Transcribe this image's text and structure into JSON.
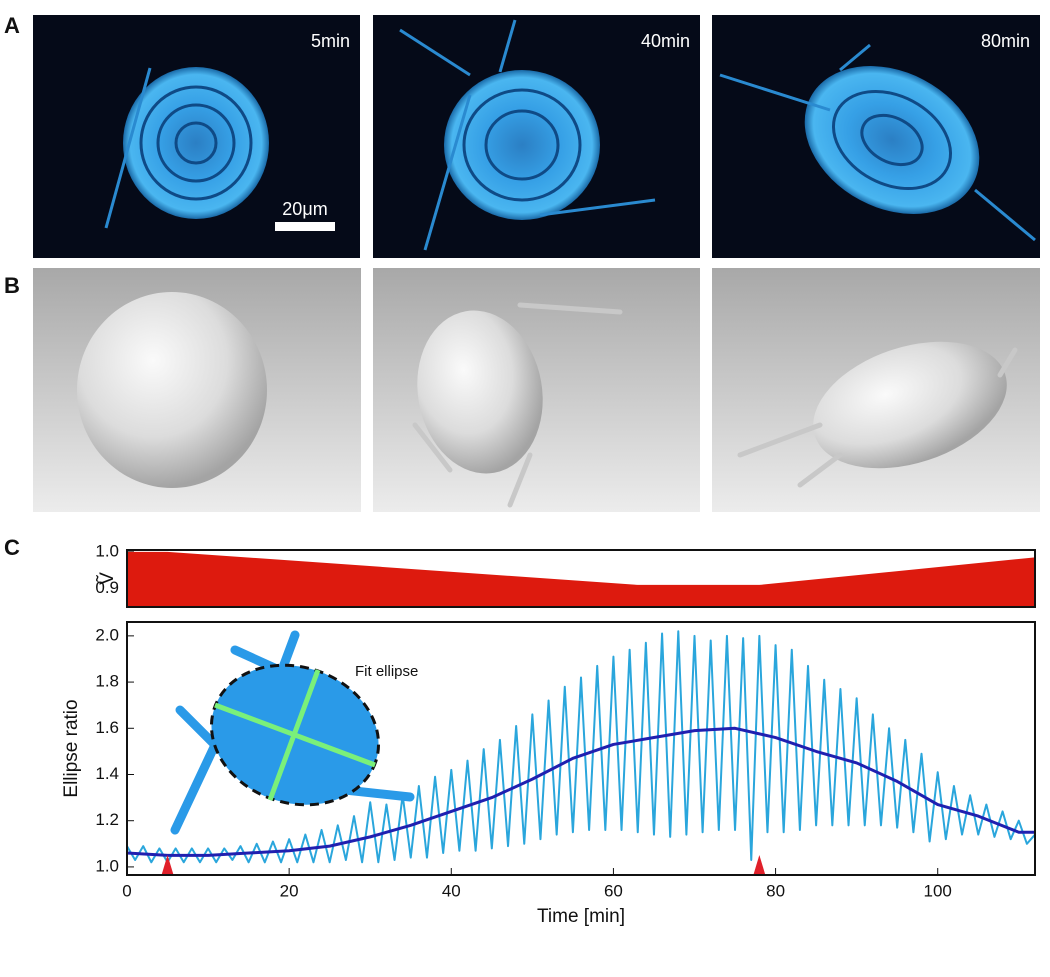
{
  "panels": {
    "A": {
      "label": "A",
      "times": [
        "5min",
        "40min",
        "80min"
      ],
      "scale_bar": "20μm"
    },
    "B": {
      "label": "B"
    },
    "C": {
      "label": "C"
    }
  },
  "chart_data": [
    {
      "type": "area",
      "ylabel": "Ṽ",
      "color": "#dd1a0e",
      "x": [
        0,
        5,
        63,
        78,
        112
      ],
      "values": [
        1.0,
        1.0,
        0.91,
        0.91,
        0.985
      ],
      "xlim": [
        0,
        112
      ],
      "ylim": [
        0.85,
        1.005
      ],
      "yticks": [
        0.9,
        {
          "value": 1,
          "label": "1.0"
        }
      ]
    },
    {
      "type": "line",
      "xlabel": "Time [min]",
      "ylabel": "Ellipse ratio",
      "annotation": "Fit ellipse",
      "xlim": [
        0,
        112
      ],
      "ylim": [
        0.965,
        2.06
      ],
      "xticks": [
        0,
        20,
        40,
        60,
        80,
        100
      ],
      "yticks": [
        {
          "value": 1,
          "label": "1.0"
        },
        1.2,
        1.4,
        1.6,
        1.8,
        {
          "value": 2,
          "label": "2.0"
        }
      ],
      "markers": {
        "x": [
          5,
          78
        ],
        "color": "#e0202a"
      },
      "series": [
        {
          "color": "#2aa6dc",
          "x": [
            0,
            1,
            2,
            3,
            4,
            5,
            6,
            7,
            8,
            9,
            10,
            11,
            12,
            13,
            14,
            15,
            16,
            17,
            18,
            19,
            20,
            21,
            22,
            23,
            24,
            25,
            26,
            27,
            28,
            29,
            30,
            31,
            32,
            33,
            34,
            35,
            36,
            37,
            38,
            39,
            40,
            41,
            42,
            43,
            44,
            45,
            46,
            47,
            48,
            49,
            50,
            51,
            52,
            53,
            54,
            55,
            56,
            57,
            58,
            59,
            60,
            61,
            62,
            63,
            64,
            65,
            66,
            67,
            68,
            69,
            70,
            71,
            72,
            73,
            74,
            75,
            76,
            77,
            78,
            79,
            80,
            81,
            82,
            83,
            84,
            85,
            86,
            87,
            88,
            89,
            90,
            91,
            92,
            93,
            94,
            95,
            96,
            97,
            98,
            99,
            100,
            101,
            102,
            103,
            104,
            105,
            106,
            107,
            108,
            109,
            110,
            111,
            112
          ],
          "values": [
            1.09,
            1.03,
            1.09,
            1.02,
            1.08,
            1.02,
            1.08,
            1.02,
            1.08,
            1.02,
            1.08,
            1.02,
            1.08,
            1.03,
            1.09,
            1.02,
            1.1,
            1.02,
            1.11,
            1.02,
            1.12,
            1.02,
            1.14,
            1.02,
            1.16,
            1.02,
            1.18,
            1.03,
            1.22,
            1.02,
            1.28,
            1.02,
            1.27,
            1.03,
            1.31,
            1.04,
            1.35,
            1.04,
            1.39,
            1.06,
            1.42,
            1.07,
            1.46,
            1.07,
            1.51,
            1.08,
            1.55,
            1.09,
            1.61,
            1.1,
            1.66,
            1.12,
            1.72,
            1.14,
            1.78,
            1.15,
            1.82,
            1.16,
            1.87,
            1.16,
            1.91,
            1.16,
            1.94,
            1.15,
            1.97,
            1.14,
            2.01,
            1.13,
            2.02,
            1.14,
            2.0,
            1.15,
            1.98,
            1.16,
            2.0,
            1.16,
            1.99,
            1.03,
            2.0,
            1.15,
            1.96,
            1.15,
            1.94,
            1.16,
            1.87,
            1.18,
            1.81,
            1.18,
            1.77,
            1.18,
            1.73,
            1.18,
            1.66,
            1.18,
            1.6,
            1.17,
            1.55,
            1.15,
            1.49,
            1.11,
            1.41,
            1.12,
            1.35,
            1.14,
            1.31,
            1.14,
            1.27,
            1.13,
            1.24,
            1.12,
            1.2,
            1.1,
            1.14
          ]
        },
        {
          "color": "#2020b0",
          "x": [
            0,
            5,
            10,
            15,
            20,
            25,
            30,
            35,
            40,
            45,
            50,
            55,
            60,
            65,
            70,
            75,
            80,
            85,
            90,
            95,
            100,
            105,
            110,
            112
          ],
          "values": [
            1.06,
            1.05,
            1.05,
            1.06,
            1.07,
            1.09,
            1.13,
            1.18,
            1.24,
            1.3,
            1.38,
            1.47,
            1.53,
            1.56,
            1.59,
            1.6,
            1.56,
            1.5,
            1.45,
            1.37,
            1.27,
            1.22,
            1.15,
            1.15
          ]
        }
      ]
    }
  ]
}
